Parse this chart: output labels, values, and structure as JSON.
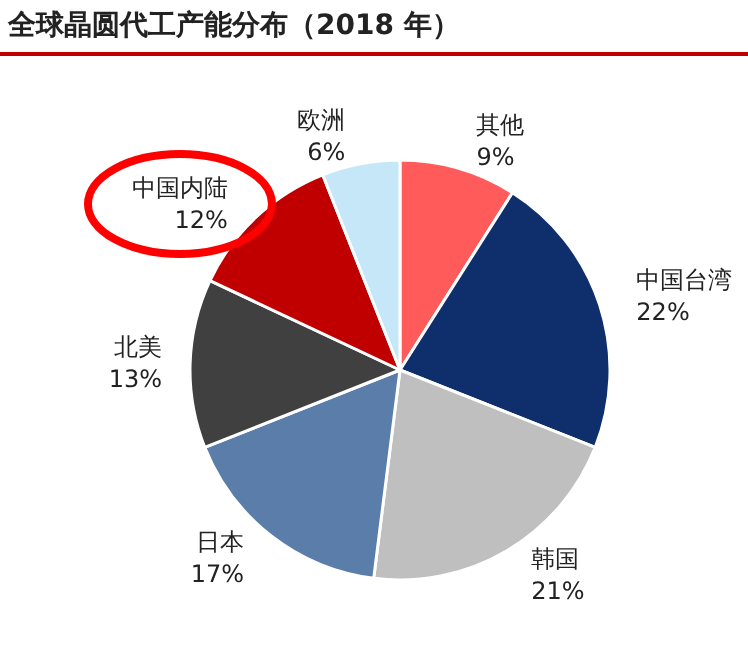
{
  "chart_data": {
    "type": "pie",
    "title": "全球晶圆代工产能分布（2018 年）",
    "categories": [
      "其他",
      "中国台湾",
      "韩国",
      "日本",
      "北美",
      "中国内陆",
      "欧洲"
    ],
    "values": [
      9,
      22,
      21,
      17,
      13,
      12,
      6
    ],
    "value_labels": [
      "9%",
      "22%",
      "21%",
      "17%",
      "13%",
      "12%",
      "6%"
    ],
    "colors": [
      "#ff5b5b",
      "#0e2f6c",
      "#bfbfbf",
      "#5a7ea9",
      "#404040",
      "#c00000",
      "#c6e7f8"
    ],
    "legend": false
  }
}
